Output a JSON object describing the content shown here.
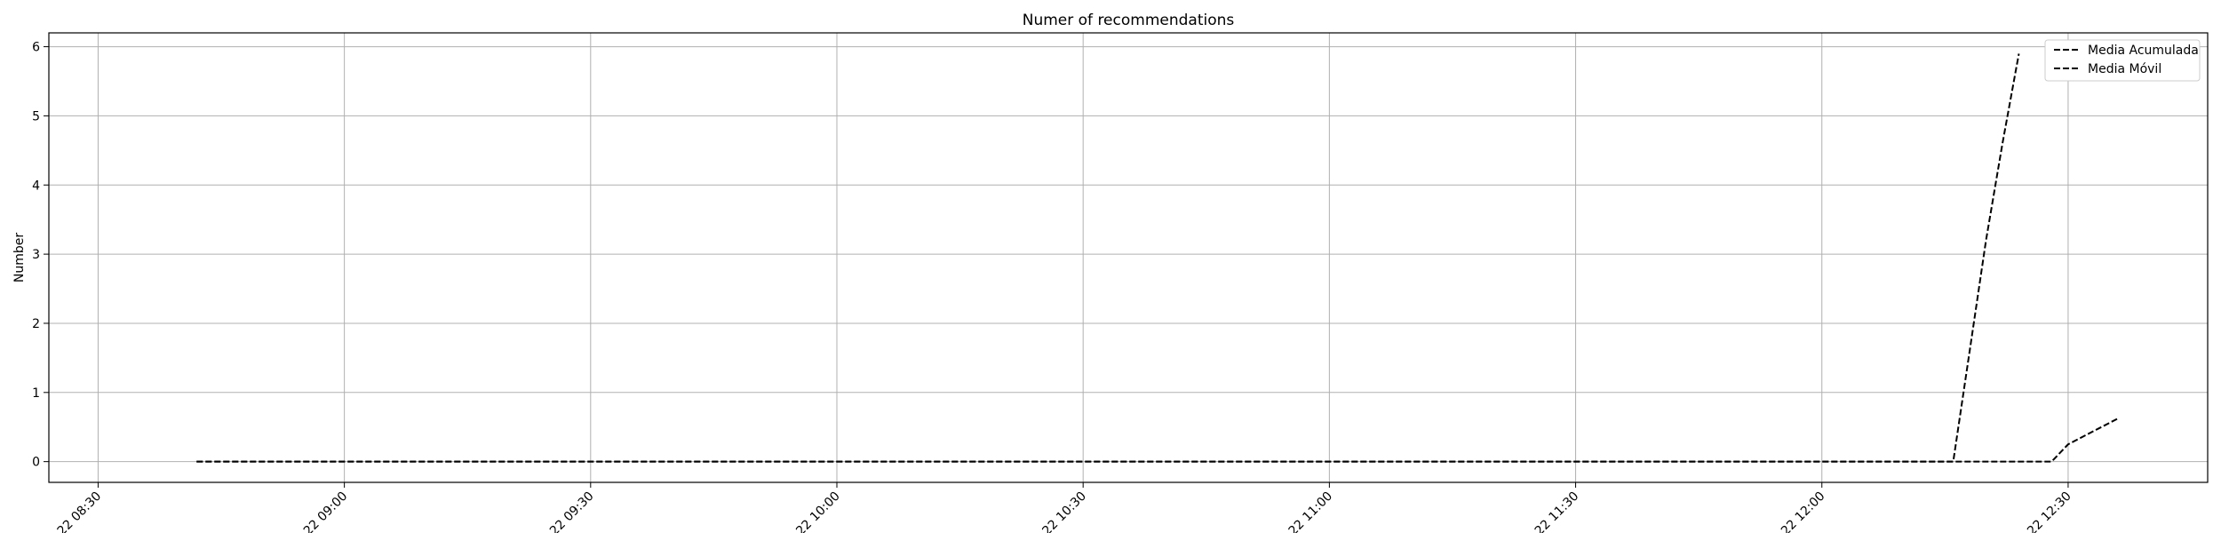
{
  "chart_data": {
    "type": "line",
    "title": "Numer of recommendations",
    "xlabel": "",
    "ylabel": "Number",
    "x_ticks": [
      "22 08:30",
      "22 09:00",
      "22 09:30",
      "22 10:00",
      "22 10:30",
      "22 11:00",
      "22 11:30",
      "22 12:00",
      "22 12:30"
    ],
    "x_range": [
      "08:24",
      "12:47"
    ],
    "y_ticks": [
      0,
      1,
      2,
      3,
      4,
      5,
      6
    ],
    "ylim": [
      -0.3,
      6.2
    ],
    "grid": true,
    "legend_position": "top-right",
    "series": [
      {
        "name": "Media Acumulada",
        "color": "#000000",
        "line_style": "dashed",
        "points": [
          {
            "x": "08:42",
            "y": 0
          },
          {
            "x": "12:16",
            "y": 0
          },
          {
            "x": "12:18",
            "y": 1.6
          },
          {
            "x": "12:20",
            "y": 3.2
          },
          {
            "x": "12:22",
            "y": 4.6
          },
          {
            "x": "12:24",
            "y": 5.9
          }
        ]
      },
      {
        "name": "Media Móvil",
        "color": "#000000",
        "line_style": "dashed",
        "points": [
          {
            "x": "08:42",
            "y": 0
          },
          {
            "x": "12:28",
            "y": 0
          },
          {
            "x": "12:30",
            "y": 0.25
          },
          {
            "x": "12:36",
            "y": 0.62
          }
        ]
      }
    ]
  }
}
